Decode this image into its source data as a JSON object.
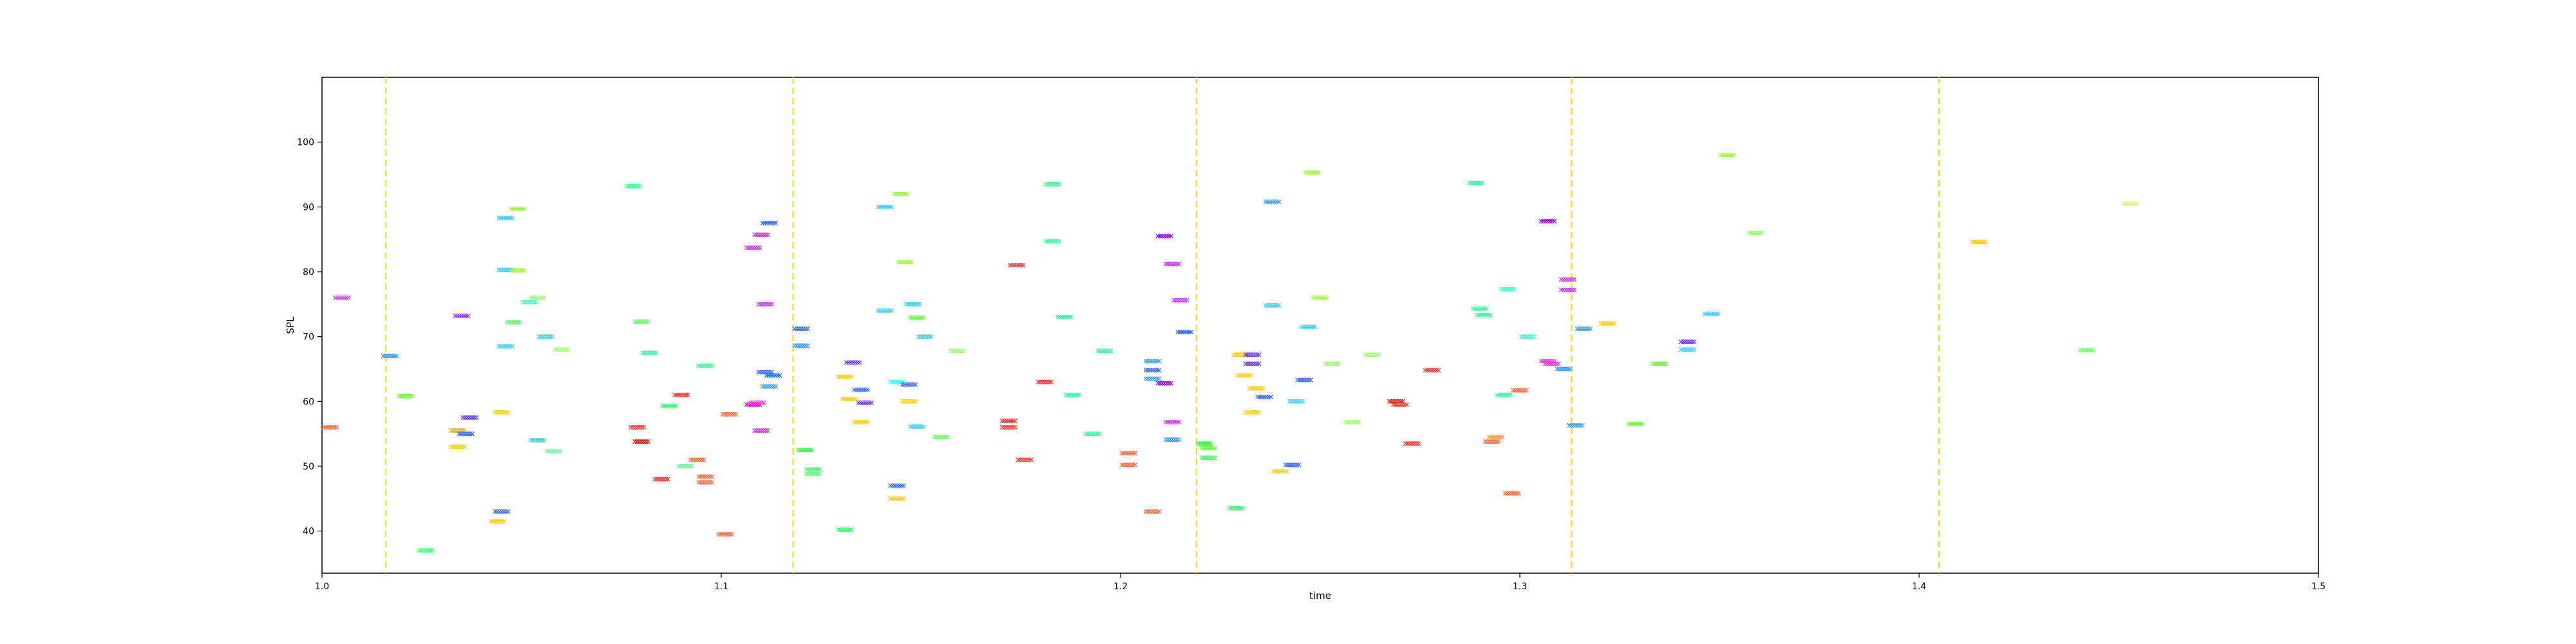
{
  "chart_data": {
    "type": "scatter",
    "title": "",
    "xlabel": "time",
    "ylabel": "SPL",
    "xlim": [
      1.0,
      1.5
    ],
    "ylim": [
      33.5,
      110.0
    ],
    "xticks": [
      1.0,
      1.1,
      1.2,
      1.3,
      1.4,
      1.5
    ],
    "xtick_labels": [
      "1.0",
      "1.1",
      "1.2",
      "1.3",
      "1.4",
      "1.5"
    ],
    "yticks": [
      40,
      50,
      60,
      70,
      80,
      90,
      100
    ],
    "ytick_labels": [
      "40",
      "50",
      "60",
      "70",
      "80",
      "90",
      "100"
    ],
    "grid": false,
    "legend": "none",
    "marker": "x",
    "vlines": {
      "color": "#ffd700",
      "style": "dashed",
      "x": [
        1.016,
        1.118,
        1.219,
        1.313,
        1.405
      ]
    },
    "points": [
      {
        "x": 1.002,
        "y": 56.0,
        "color": "#ff6633"
      },
      {
        "x": 1.005,
        "y": 76.0,
        "color": "#cc33ff"
      },
      {
        "x": 1.017,
        "y": 67.0,
        "color": "#3399ff"
      },
      {
        "x": 1.021,
        "y": 60.8,
        "color": "#66ff33"
      },
      {
        "x": 1.026,
        "y": 37.0,
        "color": "#33ff66"
      },
      {
        "x": 1.034,
        "y": 53.0,
        "color": "#ffcc00"
      },
      {
        "x": 1.034,
        "y": 55.5,
        "color": "#ffaa00"
      },
      {
        "x": 1.035,
        "y": 73.2,
        "color": "#9933ff"
      },
      {
        "x": 1.036,
        "y": 55.0,
        "color": "#3366ff"
      },
      {
        "x": 1.037,
        "y": 57.5,
        "color": "#6633ff"
      },
      {
        "x": 1.044,
        "y": 41.5,
        "color": "#ffcc00"
      },
      {
        "x": 1.045,
        "y": 58.3,
        "color": "#ffcc00"
      },
      {
        "x": 1.045,
        "y": 43.0,
        "color": "#3366ff"
      },
      {
        "x": 1.046,
        "y": 68.5,
        "color": "#33ccff"
      },
      {
        "x": 1.046,
        "y": 80.3,
        "color": "#33ccff"
      },
      {
        "x": 1.046,
        "y": 88.3,
        "color": "#33ccff"
      },
      {
        "x": 1.048,
        "y": 72.2,
        "color": "#66ff66"
      },
      {
        "x": 1.049,
        "y": 80.2,
        "color": "#99ff33"
      },
      {
        "x": 1.049,
        "y": 89.7,
        "color": "#99ff33"
      },
      {
        "x": 1.052,
        "y": 75.3,
        "color": "#33ffcc"
      },
      {
        "x": 1.054,
        "y": 76.0,
        "color": "#99ff66"
      },
      {
        "x": 1.054,
        "y": 54.0,
        "color": "#33ccff"
      },
      {
        "x": 1.056,
        "y": 70.0,
        "color": "#33ccff"
      },
      {
        "x": 1.058,
        "y": 52.3,
        "color": "#66ff99"
      },
      {
        "x": 1.06,
        "y": 68.0,
        "color": "#99ff66"
      },
      {
        "x": 1.078,
        "y": 93.2,
        "color": "#33ff99"
      },
      {
        "x": 1.079,
        "y": 56.0,
        "color": "#ff3333"
      },
      {
        "x": 1.08,
        "y": 53.8,
        "color": "#ff0000"
      },
      {
        "x": 1.08,
        "y": 72.3,
        "color": "#66ff66"
      },
      {
        "x": 1.082,
        "y": 67.5,
        "color": "#33ff99"
      },
      {
        "x": 1.085,
        "y": 48.0,
        "color": "#ff3333"
      },
      {
        "x": 1.087,
        "y": 59.3,
        "color": "#33ff66"
      },
      {
        "x": 1.09,
        "y": 61.0,
        "color": "#ff3333"
      },
      {
        "x": 1.091,
        "y": 50.0,
        "color": "#66ff99"
      },
      {
        "x": 1.094,
        "y": 51.0,
        "color": "#ff6633"
      },
      {
        "x": 1.096,
        "y": 65.5,
        "color": "#33ff99"
      },
      {
        "x": 1.096,
        "y": 47.5,
        "color": "#ff6633"
      },
      {
        "x": 1.096,
        "y": 48.4,
        "color": "#ff6633"
      },
      {
        "x": 1.101,
        "y": 39.5,
        "color": "#ff6633"
      },
      {
        "x": 1.102,
        "y": 58.0,
        "color": "#ff6633"
      },
      {
        "x": 1.108,
        "y": 83.7,
        "color": "#cc33ff"
      },
      {
        "x": 1.108,
        "y": 59.5,
        "color": "#cc00ff"
      },
      {
        "x": 1.109,
        "y": 59.8,
        "color": "#ff33cc"
      },
      {
        "x": 1.11,
        "y": 85.7,
        "color": "#cc33ff"
      },
      {
        "x": 1.11,
        "y": 55.5,
        "color": "#cc33ff"
      },
      {
        "x": 1.111,
        "y": 64.5,
        "color": "#3366ff"
      },
      {
        "x": 1.111,
        "y": 75.0,
        "color": "#cc33ff"
      },
      {
        "x": 1.112,
        "y": 87.5,
        "color": "#3366ff"
      },
      {
        "x": 1.112,
        "y": 62.3,
        "color": "#3399ff"
      },
      {
        "x": 1.113,
        "y": 64.0,
        "color": "#0066ff"
      },
      {
        "x": 1.12,
        "y": 71.2,
        "color": "#3366ff"
      },
      {
        "x": 1.12,
        "y": 68.6,
        "color": "#3399ff"
      },
      {
        "x": 1.121,
        "y": 52.5,
        "color": "#33ff33"
      },
      {
        "x": 1.123,
        "y": 49.5,
        "color": "#33ff66"
      },
      {
        "x": 1.123,
        "y": 48.8,
        "color": "#66ff66"
      },
      {
        "x": 1.131,
        "y": 40.2,
        "color": "#33ff66"
      },
      {
        "x": 1.131,
        "y": 63.8,
        "color": "#ffcc00"
      },
      {
        "x": 1.132,
        "y": 60.4,
        "color": "#ffcc00"
      },
      {
        "x": 1.133,
        "y": 66.0,
        "color": "#6633ff"
      },
      {
        "x": 1.135,
        "y": 56.8,
        "color": "#ffcc00"
      },
      {
        "x": 1.135,
        "y": 61.8,
        "color": "#3366ff"
      },
      {
        "x": 1.136,
        "y": 59.8,
        "color": "#6633ff"
      },
      {
        "x": 1.141,
        "y": 90.0,
        "color": "#33ccff"
      },
      {
        "x": 1.141,
        "y": 74.0,
        "color": "#33ccff"
      },
      {
        "x": 1.144,
        "y": 63.0,
        "color": "#33ffff"
      },
      {
        "x": 1.144,
        "y": 45.0,
        "color": "#ffcc00"
      },
      {
        "x": 1.144,
        "y": 47.0,
        "color": "#3366ff"
      },
      {
        "x": 1.145,
        "y": 92.0,
        "color": "#99ff33"
      },
      {
        "x": 1.146,
        "y": 81.5,
        "color": "#99ff33"
      },
      {
        "x": 1.147,
        "y": 60.0,
        "color": "#ffcc00"
      },
      {
        "x": 1.147,
        "y": 62.6,
        "color": "#3366ff"
      },
      {
        "x": 1.148,
        "y": 75.0,
        "color": "#33ccff"
      },
      {
        "x": 1.149,
        "y": 72.9,
        "color": "#66ff33"
      },
      {
        "x": 1.149,
        "y": 56.1,
        "color": "#33ccff"
      },
      {
        "x": 1.151,
        "y": 70.0,
        "color": "#33ccff"
      },
      {
        "x": 1.155,
        "y": 54.5,
        "color": "#66ff66"
      },
      {
        "x": 1.159,
        "y": 67.8,
        "color": "#99ff66"
      },
      {
        "x": 1.172,
        "y": 57.0,
        "color": "#ff3333"
      },
      {
        "x": 1.172,
        "y": 56.0,
        "color": "#ff3333"
      },
      {
        "x": 1.174,
        "y": 81.0,
        "color": "#ff3333"
      },
      {
        "x": 1.176,
        "y": 51.0,
        "color": "#ff3333"
      },
      {
        "x": 1.181,
        "y": 63.0,
        "color": "#ff3333"
      },
      {
        "x": 1.183,
        "y": 93.5,
        "color": "#33ff99"
      },
      {
        "x": 1.183,
        "y": 84.7,
        "color": "#33ff99"
      },
      {
        "x": 1.186,
        "y": 73.0,
        "color": "#33ff99"
      },
      {
        "x": 1.188,
        "y": 61.0,
        "color": "#33ff99"
      },
      {
        "x": 1.193,
        "y": 55.0,
        "color": "#33ff99"
      },
      {
        "x": 1.196,
        "y": 67.8,
        "color": "#33ff99"
      },
      {
        "x": 1.202,
        "y": 52.0,
        "color": "#ff6633"
      },
      {
        "x": 1.202,
        "y": 50.2,
        "color": "#ff6633"
      },
      {
        "x": 1.208,
        "y": 66.2,
        "color": "#3399ff"
      },
      {
        "x": 1.208,
        "y": 63.5,
        "color": "#3399ff"
      },
      {
        "x": 1.208,
        "y": 64.8,
        "color": "#3366ff"
      },
      {
        "x": 1.208,
        "y": 43.0,
        "color": "#ff6633"
      },
      {
        "x": 1.211,
        "y": 85.5,
        "color": "#9900ff"
      },
      {
        "x": 1.211,
        "y": 62.8,
        "color": "#9900ff"
      },
      {
        "x": 1.213,
        "y": 56.8,
        "color": "#cc33ff"
      },
      {
        "x": 1.213,
        "y": 81.2,
        "color": "#cc33ff"
      },
      {
        "x": 1.213,
        "y": 54.1,
        "color": "#3399ff"
      },
      {
        "x": 1.215,
        "y": 75.6,
        "color": "#cc33ff"
      },
      {
        "x": 1.216,
        "y": 70.7,
        "color": "#3366ff"
      },
      {
        "x": 1.221,
        "y": 53.5,
        "color": "#33ff33"
      },
      {
        "x": 1.222,
        "y": 52.8,
        "color": "#66ff33"
      },
      {
        "x": 1.222,
        "y": 51.3,
        "color": "#33ff66"
      },
      {
        "x": 1.229,
        "y": 43.5,
        "color": "#33ff66"
      },
      {
        "x": 1.23,
        "y": 67.2,
        "color": "#ffcc00"
      },
      {
        "x": 1.231,
        "y": 64.0,
        "color": "#ffcc00"
      },
      {
        "x": 1.233,
        "y": 58.3,
        "color": "#ffcc00"
      },
      {
        "x": 1.233,
        "y": 65.8,
        "color": "#6633ff"
      },
      {
        "x": 1.233,
        "y": 67.2,
        "color": "#6633ff"
      },
      {
        "x": 1.234,
        "y": 62.0,
        "color": "#ffcc00"
      },
      {
        "x": 1.236,
        "y": 60.7,
        "color": "#3366ff"
      },
      {
        "x": 1.238,
        "y": 90.8,
        "color": "#3399ff"
      },
      {
        "x": 1.238,
        "y": 74.8,
        "color": "#33ccff"
      },
      {
        "x": 1.24,
        "y": 49.2,
        "color": "#ffcc00"
      },
      {
        "x": 1.243,
        "y": 50.2,
        "color": "#3366ff"
      },
      {
        "x": 1.244,
        "y": 60.0,
        "color": "#33ccff"
      },
      {
        "x": 1.246,
        "y": 63.3,
        "color": "#3366ff"
      },
      {
        "x": 1.247,
        "y": 71.5,
        "color": "#33ccff"
      },
      {
        "x": 1.248,
        "y": 95.3,
        "color": "#99ff33"
      },
      {
        "x": 1.25,
        "y": 76.0,
        "color": "#99ff33"
      },
      {
        "x": 1.253,
        "y": 65.8,
        "color": "#99ff66"
      },
      {
        "x": 1.258,
        "y": 56.8,
        "color": "#99ff66"
      },
      {
        "x": 1.263,
        "y": 67.2,
        "color": "#99ff66"
      },
      {
        "x": 1.269,
        "y": 60.0,
        "color": "#ff0000"
      },
      {
        "x": 1.27,
        "y": 59.5,
        "color": "#ff3333"
      },
      {
        "x": 1.273,
        "y": 53.5,
        "color": "#ff3333"
      },
      {
        "x": 1.278,
        "y": 64.8,
        "color": "#ff3333"
      },
      {
        "x": 1.289,
        "y": 93.7,
        "color": "#33ff99"
      },
      {
        "x": 1.29,
        "y": 74.3,
        "color": "#33ff99"
      },
      {
        "x": 1.291,
        "y": 73.3,
        "color": "#33ff99"
      },
      {
        "x": 1.293,
        "y": 53.8,
        "color": "#ff6633"
      },
      {
        "x": 1.294,
        "y": 54.5,
        "color": "#ff9933"
      },
      {
        "x": 1.296,
        "y": 61.0,
        "color": "#33ff99"
      },
      {
        "x": 1.297,
        "y": 77.3,
        "color": "#33ffcc"
      },
      {
        "x": 1.298,
        "y": 45.8,
        "color": "#ff6633"
      },
      {
        "x": 1.3,
        "y": 61.7,
        "color": "#ff6633"
      },
      {
        "x": 1.302,
        "y": 70.0,
        "color": "#33ffcc"
      },
      {
        "x": 1.307,
        "y": 66.2,
        "color": "#cc33ff"
      },
      {
        "x": 1.307,
        "y": 87.8,
        "color": "#9900ff"
      },
      {
        "x": 1.308,
        "y": 65.8,
        "color": "#ff33cc"
      },
      {
        "x": 1.311,
        "y": 65.0,
        "color": "#3399ff"
      },
      {
        "x": 1.312,
        "y": 78.8,
        "color": "#cc33ff"
      },
      {
        "x": 1.312,
        "y": 77.2,
        "color": "#cc33ff"
      },
      {
        "x": 1.314,
        "y": 56.3,
        "color": "#3399ff"
      },
      {
        "x": 1.316,
        "y": 71.2,
        "color": "#3399ff"
      },
      {
        "x": 1.322,
        "y": 72.0,
        "color": "#ffcc00"
      },
      {
        "x": 1.329,
        "y": 56.5,
        "color": "#66ff33"
      },
      {
        "x": 1.335,
        "y": 65.8,
        "color": "#66ff33"
      },
      {
        "x": 1.342,
        "y": 69.2,
        "color": "#6633ff"
      },
      {
        "x": 1.342,
        "y": 68.0,
        "color": "#33ccff"
      },
      {
        "x": 1.348,
        "y": 73.5,
        "color": "#33ccff"
      },
      {
        "x": 1.352,
        "y": 98.0,
        "color": "#99ff33"
      },
      {
        "x": 1.359,
        "y": 86.0,
        "color": "#99ff66"
      },
      {
        "x": 1.415,
        "y": 84.6,
        "color": "#ffcc00"
      },
      {
        "x": 1.442,
        "y": 67.9,
        "color": "#66ff66"
      },
      {
        "x": 1.453,
        "y": 90.5,
        "color": "#ccff66"
      }
    ]
  }
}
